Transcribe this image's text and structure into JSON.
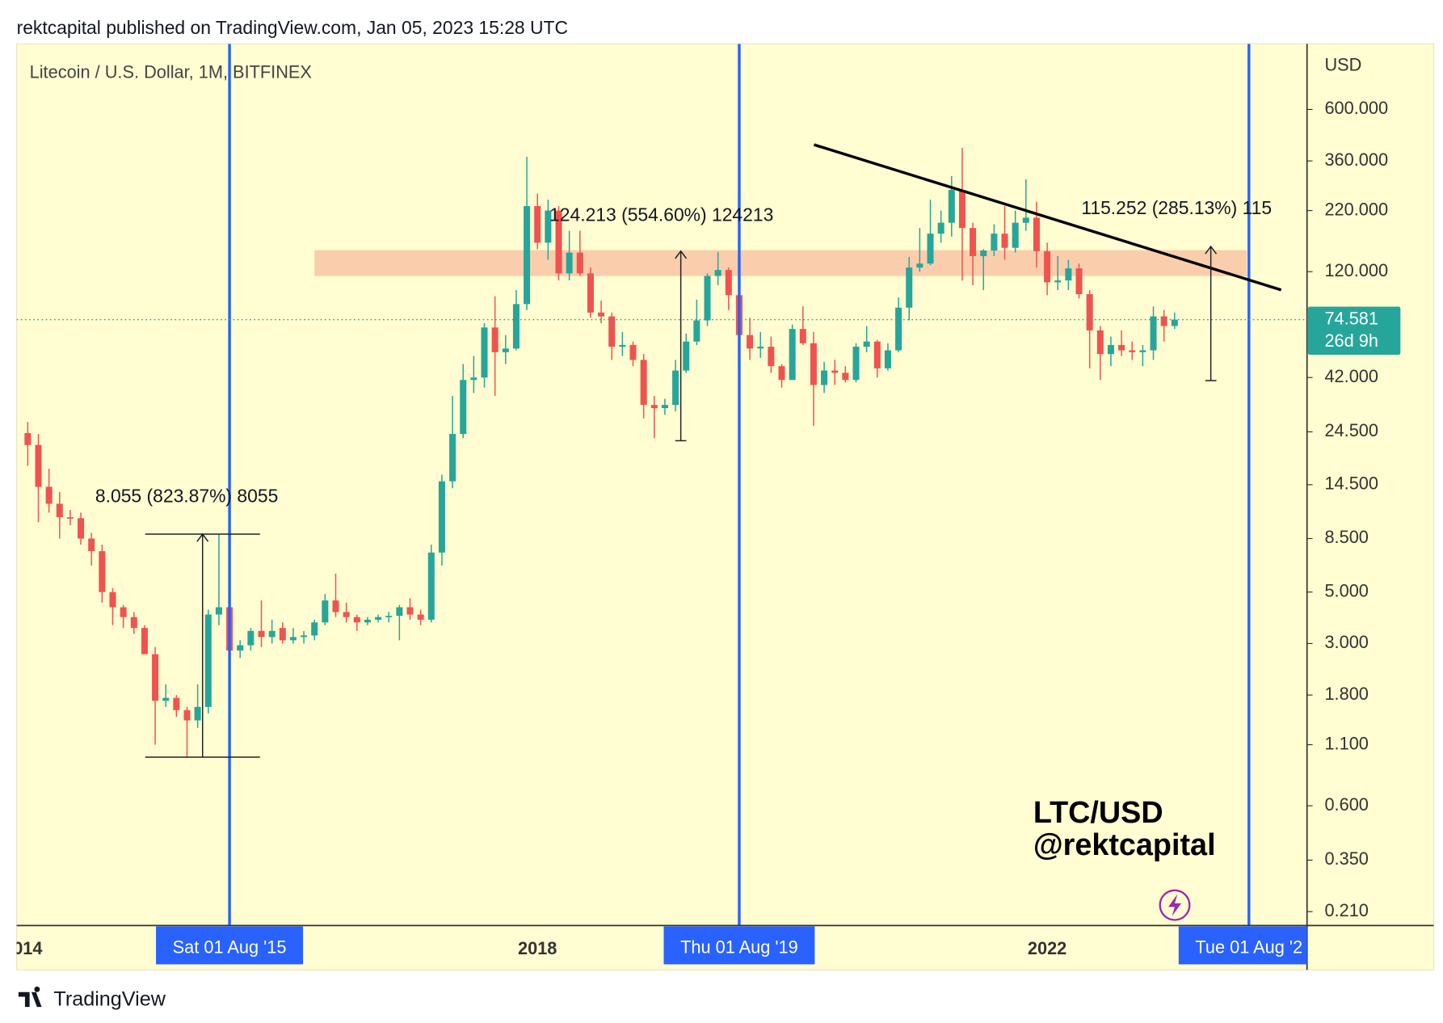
{
  "header": {
    "text": "rektcapital published on TradingView.com, Jan 05, 2023 15:28 UTC"
  },
  "footer": {
    "logo_text": "TradingView"
  },
  "chart_data": {
    "type": "candlestick",
    "title": "Litecoin / U.S. Dollar, 1M, BITFINEX",
    "y_axis_label": "USD",
    "log_scale": true,
    "watermark": [
      "LTC/USD",
      "@rektcapital"
    ],
    "countdown": "26d 9h",
    "up_color": "#26a69a",
    "down_color": "#ef5350",
    "vline_color": "#2962ff",
    "measurements": [
      "8.055 (823.87%) 8055",
      "124.213 (554.60%) 124213",
      "115.252 (285.13%) 115"
    ],
    "ylim": [
      0.183,
      1150
    ],
    "yticks": [
      {
        "value": 600,
        "label": "600.000"
      },
      {
        "value": 360,
        "label": "360.000"
      },
      {
        "value": 220,
        "label": "220.000"
      },
      {
        "value": 120,
        "label": "120.000"
      },
      {
        "value": 42,
        "label": "42.000"
      },
      {
        "value": 24.5,
        "label": "24.500"
      },
      {
        "value": 14.5,
        "label": "14.500"
      },
      {
        "value": 8.5,
        "label": "8.500"
      },
      {
        "value": 5,
        "label": "5.000"
      },
      {
        "value": 3,
        "label": "3.000"
      },
      {
        "value": 1.8,
        "label": "1.800"
      },
      {
        "value": 1.1,
        "label": "1.100"
      },
      {
        "value": 0.6,
        "label": "0.600"
      },
      {
        "value": 0.35,
        "label": "0.350"
      },
      {
        "value": 0.21,
        "label": "0.210"
      }
    ],
    "categories": [
      "014",
      null,
      null,
      null,
      null,
      null,
      null,
      null,
      null,
      null,
      null,
      null,
      null,
      null,
      null,
      null,
      null,
      null,
      null,
      {
        "label": "Sat 01 Aug '15",
        "vline": true
      },
      null,
      null,
      null,
      null,
      null,
      null,
      null,
      null,
      null,
      null,
      null,
      null,
      null,
      null,
      null,
      null,
      null,
      null,
      null,
      null,
      null,
      null,
      null,
      null,
      null,
      null,
      null,
      null,
      "2018",
      null,
      null,
      null,
      null,
      null,
      null,
      null,
      null,
      null,
      null,
      null,
      null,
      null,
      null,
      null,
      null,
      null,
      null,
      {
        "label": "Thu 01 Aug '19",
        "vline": true
      },
      null,
      null,
      null,
      null,
      null,
      null,
      null,
      null,
      null,
      null,
      null,
      null,
      null,
      null,
      null,
      null,
      null,
      null,
      null,
      null,
      null,
      null,
      null,
      null,
      null,
      null,
      null,
      null,
      "2022",
      null,
      null,
      null,
      null,
      null,
      null,
      null,
      null,
      null,
      null,
      null,
      null,
      null,
      null,
      null,
      null,
      null,
      null,
      {
        "label": "Tue 01 Aug '2",
        "vline": true
      }
    ],
    "open": [
      24.2,
      21.5,
      14.2,
      12,
      10.5,
      10.4,
      8.5,
      7.5,
      5,
      4.3,
      3.9,
      3.5,
      2.7,
      1.7,
      1.75,
      1.55,
      1.4,
      1.6,
      4,
      4.3,
      2.8,
      2.95,
      3.4,
      3.2,
      3.5,
      3.1,
      3.2,
      3.25,
      3.7,
      4.6,
      4.1,
      3.9,
      3.7,
      3.8,
      3.9,
      3.95,
      4.3,
      4,
      3.8,
      7.4,
      15,
      24,
      41,
      42,
      69,
      54,
      56,
      87,
      230,
      160,
      220,
      118,
      145,
      118,
      80,
      77,
      57,
      58,
      50,
      32,
      31,
      32,
      45,
      60,
      74,
      115,
      122,
      95,
      64,
      56,
      57,
      47,
      41,
      68,
      59,
      39,
      45,
      44,
      41,
      57,
      60,
      46,
      55,
      84,
      125,
      130,
      175,
      195,
      270,
      185,
      140,
      148,
      175,
      152,
      195,
      205,
      147,
      108,
      110,
      124,
      96,
      67,
      53,
      58,
      55,
      54,
      55,
      77,
      70,
      null,
      null,
      null,
      null,
      null,
      null,
      null
    ],
    "high": [
      27,
      24,
      17,
      13.5,
      11.3,
      11,
      9,
      8,
      5.2,
      4.4,
      4.1,
      3.6,
      2.9,
      2,
      1.8,
      1.6,
      2,
      4.2,
      8.9,
      4.8,
      3.1,
      3.5,
      4.6,
      3.8,
      3.7,
      3.5,
      3.4,
      3.8,
      4.9,
      6,
      4.5,
      4,
      3.9,
      4,
      4.1,
      4.4,
      4.7,
      4.2,
      8,
      16,
      35,
      48,
      52,
      72,
      94,
      64,
      100,
      375,
      260,
      245,
      230,
      180,
      180,
      125,
      90,
      80,
      66,
      60,
      53,
      35,
      34,
      50,
      65,
      91,
      118,
      146,
      125,
      97,
      76,
      66,
      63,
      48,
      71,
      85,
      66,
      49,
      50,
      47,
      59,
      70,
      61,
      59,
      93,
      139,
      185,
      245,
      220,
      310,
      410,
      195,
      150,
      192,
      230,
      220,
      300,
      240,
      160,
      140,
      135,
      130,
      100,
      70,
      63,
      67,
      60,
      58,
      85,
      82,
      80,
      null,
      null,
      null,
      null,
      null,
      null,
      null
    ],
    "low": [
      17.5,
      10,
      11,
      8.5,
      9.7,
      8,
      6.5,
      4.5,
      3.6,
      3.5,
      3.3,
      2.7,
      1.1,
      1.6,
      1.45,
      0.97,
      1.3,
      1.5,
      3.6,
      2.3,
      2.6,
      2.8,
      2.9,
      3,
      3,
      3,
      3,
      3.1,
      3.6,
      3.9,
      3.7,
      3.4,
      3.6,
      3.7,
      3.7,
      3.1,
      3.8,
      3.6,
      3.7,
      6.5,
      14,
      23,
      36,
      38,
      35,
      48,
      55,
      82,
      150,
      135,
      110,
      110,
      115,
      76,
      72,
      50,
      52,
      47,
      28,
      23,
      29,
      30,
      44,
      58,
      70,
      105,
      82,
      62,
      50,
      51,
      44,
      38,
      41,
      58,
      26,
      36,
      39,
      40,
      40,
      54,
      42,
      45,
      54,
      74,
      120,
      128,
      160,
      170,
      110,
      105,
      100,
      140,
      135,
      145,
      180,
      125,
      95,
      100,
      100,
      92,
      46,
      41,
      47,
      52,
      50,
      47,
      50,
      60,
      68,
      null,
      null,
      null,
      null,
      null,
      null,
      null
    ],
    "close": [
      21.5,
      14.2,
      12,
      10.5,
      10.4,
      8.5,
      7.5,
      5,
      4.3,
      3.9,
      3.5,
      2.7,
      1.7,
      1.75,
      1.55,
      1.4,
      1.6,
      4,
      4.3,
      2.8,
      2.95,
      3.4,
      3.2,
      3.4,
      3.1,
      3.2,
      3.25,
      3.7,
      4.6,
      4.1,
      3.9,
      3.7,
      3.8,
      3.9,
      3.95,
      4.3,
      4,
      3.8,
      7.4,
      15,
      24,
      41,
      42,
      69,
      54,
      56,
      87,
      230,
      160,
      220,
      118,
      145,
      118,
      80,
      77,
      57,
      58,
      50,
      32,
      31,
      32,
      45,
      60,
      74,
      115,
      122,
      95,
      64,
      56,
      57,
      47,
      41,
      68,
      59,
      39,
      45,
      44,
      41,
      57,
      60,
      46,
      55,
      84,
      125,
      130,
      175,
      195,
      270,
      185,
      140,
      148,
      175,
      152,
      195,
      205,
      147,
      108,
      110,
      124,
      96,
      67,
      53,
      58,
      55,
      54,
      55,
      77,
      70,
      74.581,
      null,
      null,
      null,
      null,
      null,
      null,
      null
    ]
  }
}
